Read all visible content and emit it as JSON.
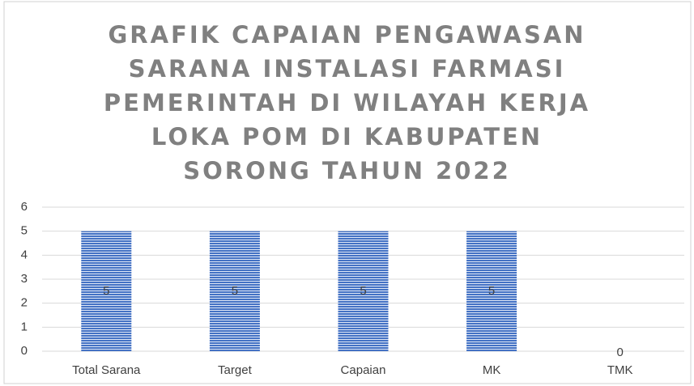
{
  "chart_data": {
    "type": "bar",
    "title": "GRAFIK CAPAIAN PENGAWASAN\nSARANA INSTALASI FARMASI\nPEMERINTAH DI WILAYAH KERJA\nLOKA POM DI KABUPATEN\nSORONG TAHUN 2022",
    "categories": [
      "Total Sarana",
      "Target",
      "Capaian",
      "MK",
      "TMK"
    ],
    "values": [
      5,
      5,
      5,
      5,
      0
    ],
    "color": "#4472c4",
    "ylim": [
      0,
      6
    ],
    "yticks": [
      0,
      1,
      2,
      3,
      4,
      5,
      6
    ],
    "grid": true
  }
}
